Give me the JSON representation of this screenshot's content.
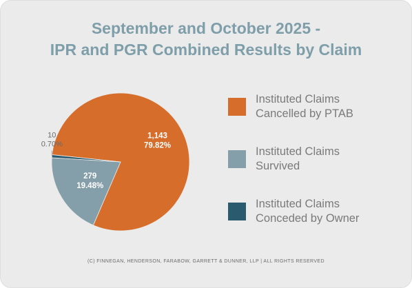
{
  "chart_data": {
    "type": "pie",
    "title": [
      "September and October 2025 -",
      "IPR and PGR Combined Results by Claim"
    ],
    "slices": [
      {
        "name": "Instituted Claims Cancelled by PTAB",
        "legend_lines": [
          "Instituted Claims",
          "Cancelled by PTAB"
        ],
        "value": 1143,
        "value_label": "1,143",
        "percent_label": "79.82%",
        "color": "#d76d2b"
      },
      {
        "name": "Instituted Claims Survived",
        "legend_lines": [
          "Instituted Claims",
          "Survived"
        ],
        "value": 279,
        "value_label": "279",
        "percent_label": "19.48%",
        "color": "#849faa"
      },
      {
        "name": "Instituted Claims Conceded by Owner",
        "legend_lines": [
          "Instituted Claims",
          "Conceded by Owner"
        ],
        "value": 10,
        "value_label": "10",
        "percent_label": "0.70%",
        "color": "#2a5a6e"
      }
    ],
    "legend_position": "right"
  },
  "footer": "(C) FINNEGAN, HENDERSON, FARABOW, GARRETT & DUNNER, LLP | ALL RIGHTS RESERVED"
}
